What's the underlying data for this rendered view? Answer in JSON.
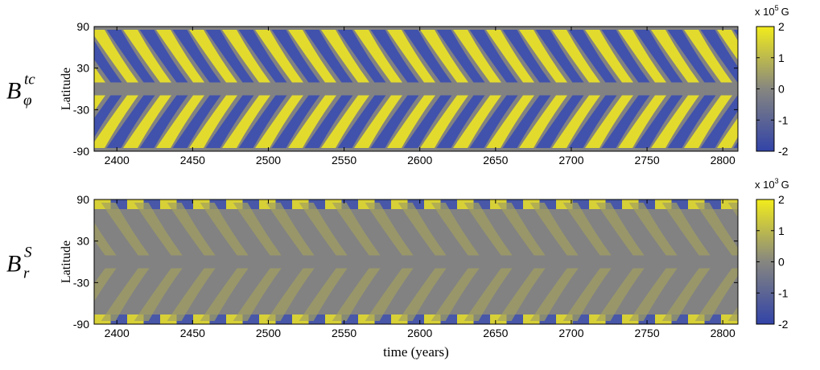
{
  "charts": [
    {
      "type": "heatmap",
      "label": {
        "base": "B",
        "sub": "φ",
        "sup": "tc"
      },
      "ylabel": "Latitude",
      "xlim": [
        2385,
        2810
      ],
      "xticks": [
        2400,
        2450,
        2500,
        2550,
        2600,
        2650,
        2700,
        2750,
        2800
      ],
      "ylim": [
        -90,
        90
      ],
      "yticks": [
        -90,
        -30,
        30,
        90
      ],
      "colorbar": {
        "clim": [
          -2,
          2
        ],
        "ticks": [
          -2,
          -1,
          0,
          1,
          2
        ],
        "unit": {
          "prefix": "x 10",
          "exponent": "5",
          "suffix": "G"
        }
      }
    },
    {
      "type": "heatmap",
      "label": {
        "base": "B",
        "sub": "r",
        "sup": "S"
      },
      "ylabel": "Latitude",
      "xlabel": "time (years)",
      "xlim": [
        2385,
        2810
      ],
      "xticks": [
        2400,
        2450,
        2500,
        2550,
        2600,
        2650,
        2700,
        2750,
        2800
      ],
      "ylim": [
        -90,
        90
      ],
      "yticks": [
        -90,
        -30,
        30,
        90
      ],
      "colorbar": {
        "clim": [
          -2,
          2
        ],
        "ticks": [
          -2,
          -1,
          0,
          1,
          2
        ],
        "unit": {
          "prefix": "x 10",
          "exponent": "3",
          "suffix": "G"
        }
      }
    }
  ]
}
